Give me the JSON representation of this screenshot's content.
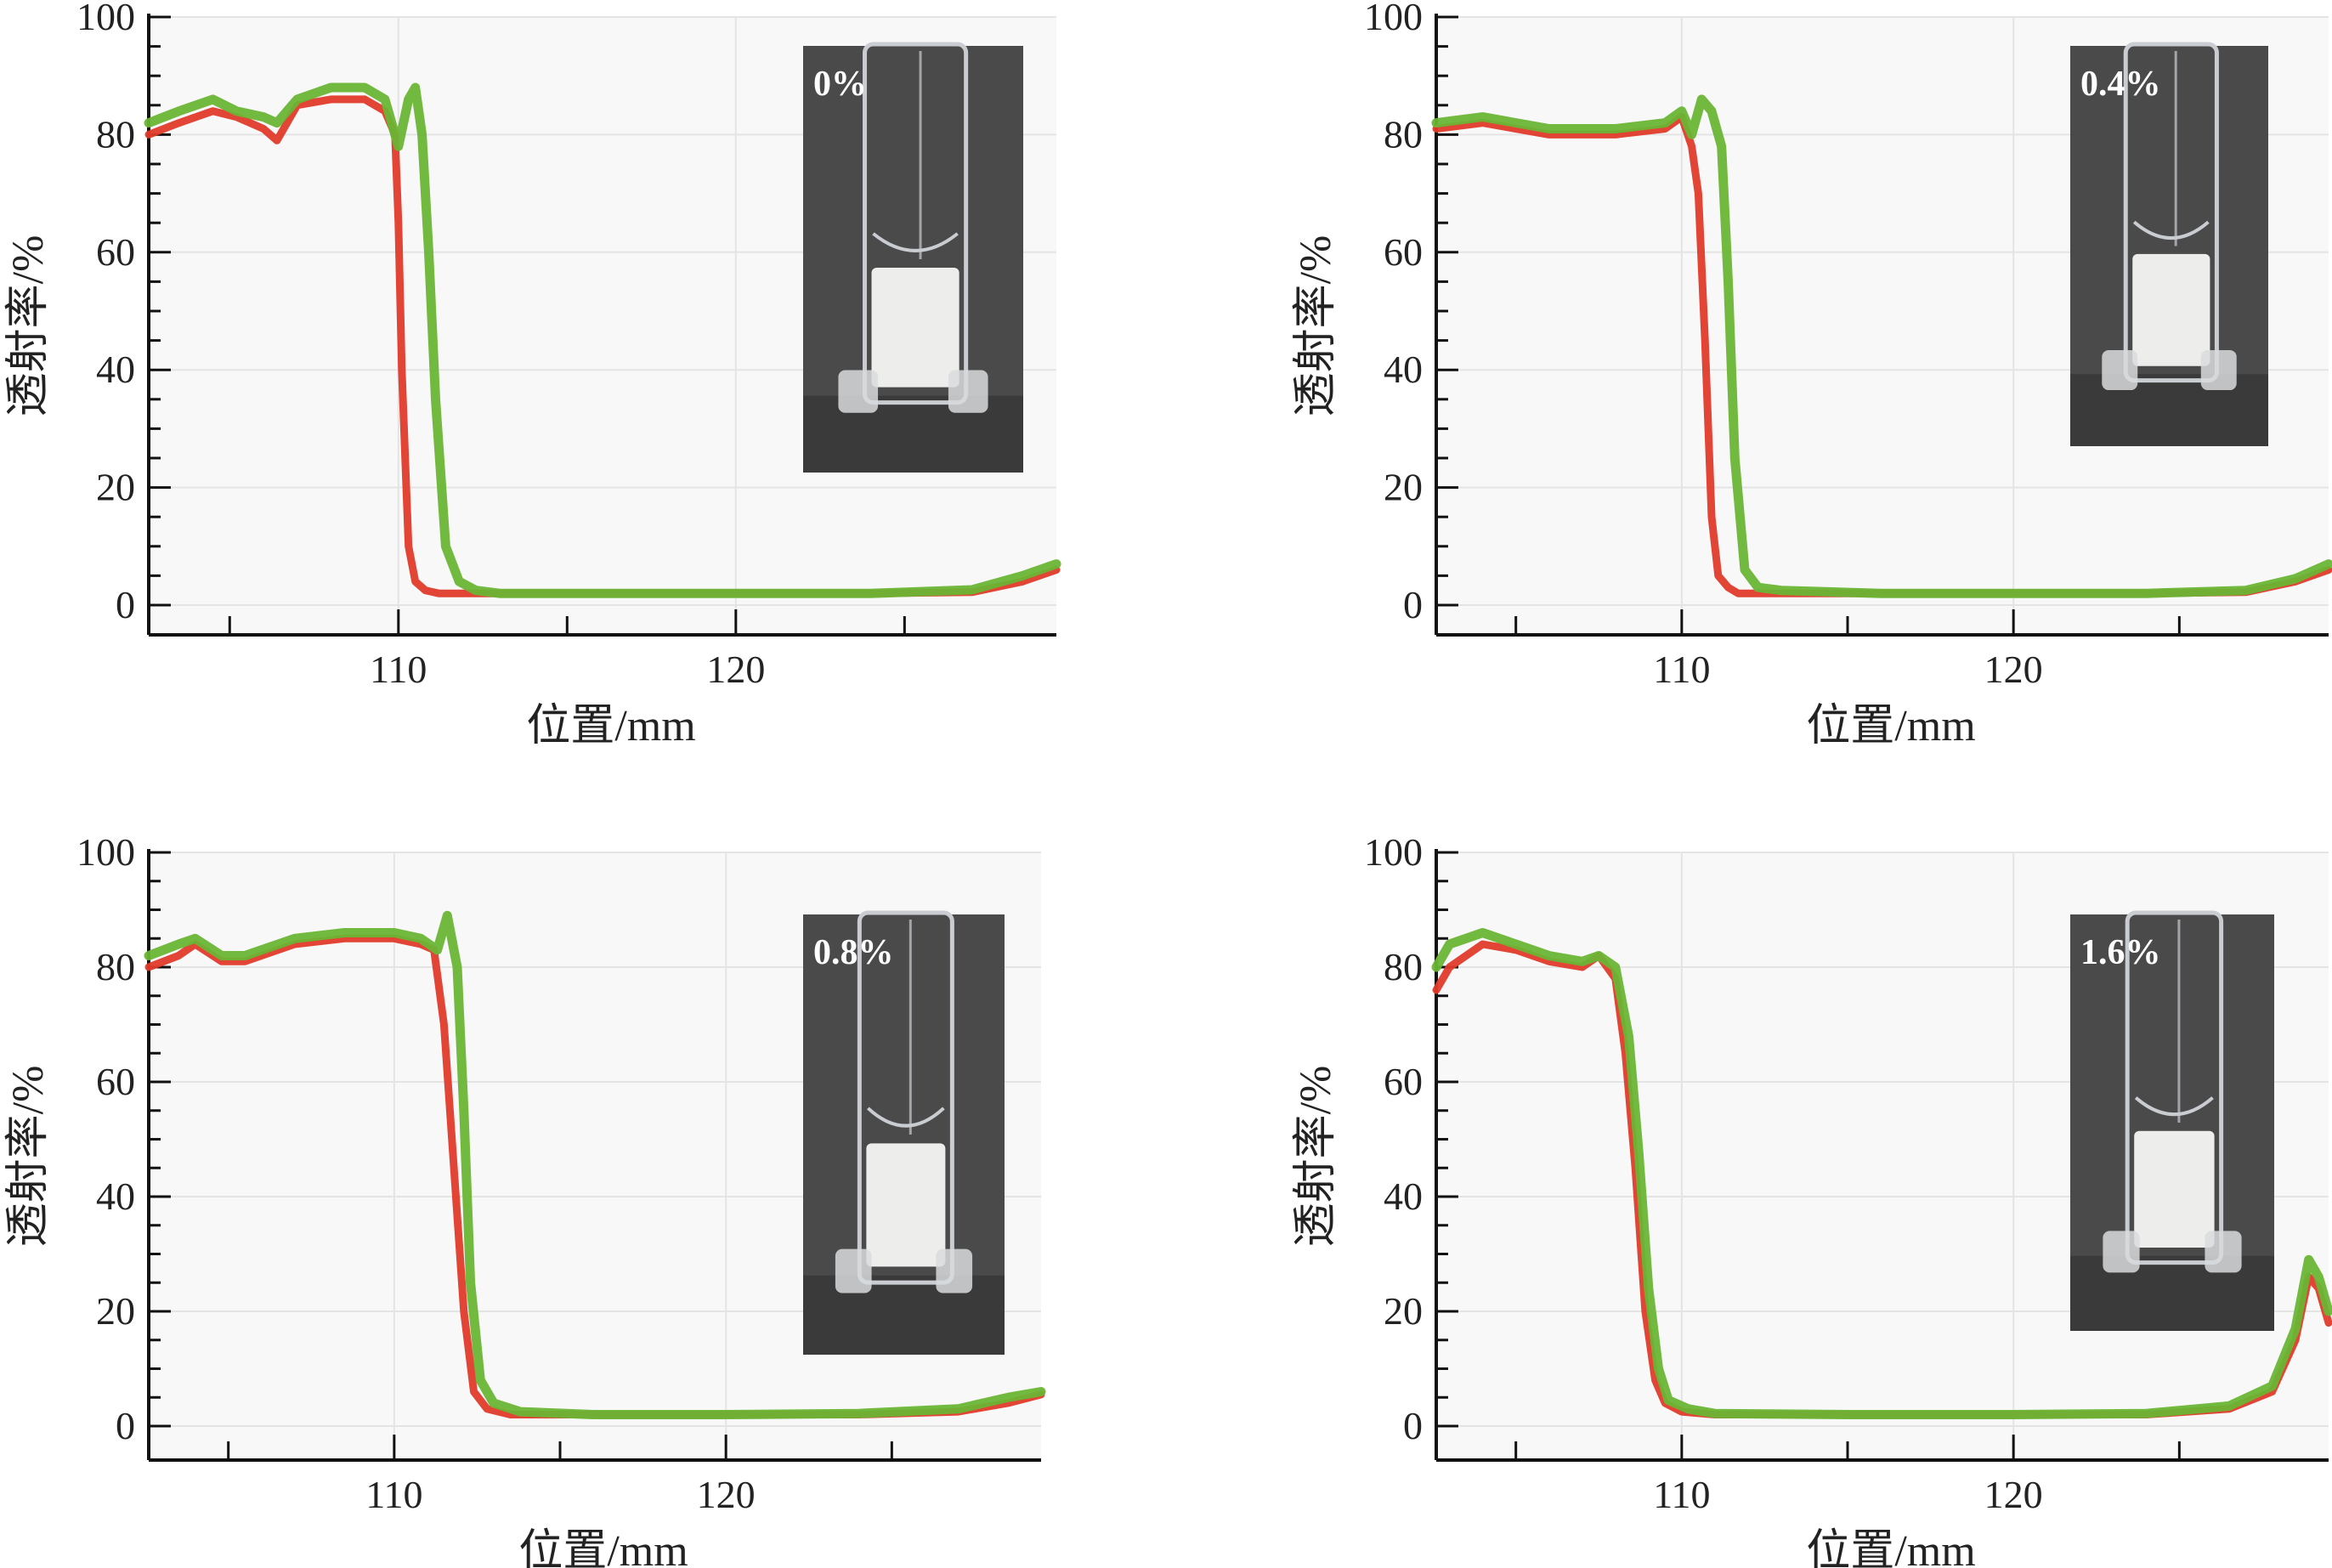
{
  "figure": {
    "panels": [
      {
        "label": "0%"
      },
      {
        "label": "0.4%"
      },
      {
        "label": "0.8%"
      },
      {
        "label": "1.6%"
      }
    ]
  },
  "colors": {
    "series_early": "#e03a2a",
    "series_late": "#6ab535",
    "plot_bg": "#f8f8f8",
    "grid": "#e4e4e4",
    "axis": "#111111",
    "photo_bg": "#4a4a4a",
    "photo_dark": "#3a3a3a",
    "tube_glass": "#c9ccd0",
    "sample_fill": "#ededeb"
  },
  "chart_data": [
    {
      "type": "line",
      "title": "0%",
      "xlabel": "位置/mm",
      "ylabel": "透射率/%",
      "xlim": [
        102.6,
        129.5
      ],
      "ylim": [
        -5,
        100
      ],
      "xticks": [
        110,
        120
      ],
      "yticks": [
        0,
        20,
        40,
        60,
        80,
        100
      ],
      "grid": true,
      "series": [
        {
          "name": "red scan",
          "color": "#e03a2a",
          "x": [
            102.6,
            103.5,
            104.5,
            105.2,
            106.0,
            106.4,
            107.0,
            108.0,
            109.0,
            109.6,
            109.9,
            110.0,
            110.1,
            110.3,
            110.5,
            110.8,
            111.2,
            111.6,
            112.0,
            113.0,
            116.0,
            120.0,
            124.0,
            127.0,
            128.5,
            129.5
          ],
          "y": [
            80,
            82,
            84,
            83,
            81,
            79,
            85,
            86,
            86,
            84,
            80,
            65,
            40,
            10,
            4,
            2.5,
            2,
            2,
            2,
            2,
            2,
            2,
            2,
            2.2,
            4,
            6
          ]
        },
        {
          "name": "green scan",
          "color": "#6ab535",
          "x": [
            102.6,
            103.5,
            104.5,
            105.2,
            106.0,
            106.4,
            107.0,
            108.0,
            109.0,
            109.6,
            110.0,
            110.3,
            110.5,
            110.7,
            110.9,
            111.1,
            111.4,
            111.8,
            112.3,
            113.0,
            116.0,
            120.0,
            124.0,
            127.0,
            128.5,
            129.5
          ],
          "y": [
            82,
            84,
            86,
            84,
            83,
            82,
            86,
            88,
            88,
            86,
            78,
            86,
            88,
            80,
            60,
            35,
            10,
            4,
            2.5,
            2,
            2,
            2,
            2,
            2.6,
            5,
            7
          ]
        }
      ],
      "annotations": [
        "0%"
      ]
    },
    {
      "type": "line",
      "title": "0.4%",
      "xlabel": "位置/mm",
      "ylabel": "透射率/%",
      "xlim": [
        102.6,
        129.5
      ],
      "ylim": [
        -5,
        100
      ],
      "xticks": [
        110,
        120
      ],
      "yticks": [
        0,
        20,
        40,
        60,
        80,
        100
      ],
      "grid": true,
      "series": [
        {
          "name": "red scan",
          "color": "#e03a2a",
          "x": [
            102.6,
            104.0,
            106.0,
            108.0,
            109.5,
            110.0,
            110.3,
            110.5,
            110.7,
            110.9,
            111.1,
            111.4,
            111.7,
            112.0,
            114.0,
            118.0,
            121.0,
            124.0,
            127.0,
            128.5,
            129.5
          ],
          "y": [
            81,
            82,
            80,
            80,
            81,
            83,
            78,
            70,
            45,
            15,
            5,
            3,
            2,
            2,
            2,
            2,
            2,
            2,
            2.2,
            4,
            6
          ]
        },
        {
          "name": "green scan",
          "color": "#6ab535",
          "x": [
            102.6,
            104.0,
            106.0,
            108.0,
            109.5,
            110.0,
            110.3,
            110.6,
            110.9,
            111.2,
            111.4,
            111.6,
            111.9,
            112.3,
            113.0,
            116.0,
            120.0,
            124.0,
            127.0,
            128.5,
            129.5
          ],
          "y": [
            82,
            83,
            81,
            81,
            82,
            84,
            80,
            86,
            84,
            78,
            55,
            25,
            6,
            3,
            2.5,
            2,
            2,
            2,
            2.5,
            4.5,
            7
          ]
        }
      ],
      "annotations": [
        "0.4%"
      ]
    },
    {
      "type": "line",
      "title": "0.8%",
      "xlabel": "位置/mm",
      "ylabel": "透射率/%",
      "xlim": [
        102.6,
        129.5
      ],
      "ylim": [
        -5,
        100
      ],
      "xticks": [
        110,
        120
      ],
      "yticks": [
        0,
        20,
        40,
        60,
        80,
        100
      ],
      "grid": true,
      "series": [
        {
          "name": "red scan",
          "color": "#e03a2a",
          "x": [
            102.6,
            103.5,
            104.0,
            104.8,
            105.5,
            107.0,
            108.5,
            110.0,
            110.8,
            111.2,
            111.5,
            111.8,
            112.1,
            112.4,
            112.8,
            113.5,
            116.0,
            120.0,
            124.0,
            127.0,
            128.5,
            129.5
          ],
          "y": [
            80,
            82,
            84,
            81,
            81,
            84,
            85,
            85,
            84,
            83,
            70,
            45,
            20,
            6,
            3,
            2,
            2,
            2,
            2,
            2.5,
            4,
            5.5
          ]
        },
        {
          "name": "green scan",
          "color": "#6ab535",
          "x": [
            102.6,
            103.5,
            104.0,
            104.8,
            105.5,
            107.0,
            108.5,
            110.0,
            110.8,
            111.3,
            111.6,
            111.9,
            112.1,
            112.3,
            112.6,
            113.0,
            113.8,
            116.0,
            120.0,
            124.0,
            127.0,
            128.5,
            129.5
          ],
          "y": [
            82,
            84,
            85,
            82,
            82,
            85,
            86,
            86,
            85,
            83,
            89,
            80,
            55,
            25,
            8,
            4,
            2.5,
            2,
            2,
            2.2,
            3,
            5,
            6
          ]
        }
      ],
      "annotations": [
        "0.8%"
      ]
    },
    {
      "type": "line",
      "title": "1.6%",
      "xlabel": "位置/mm",
      "ylabel": "透射率/%",
      "xlim": [
        102.6,
        129.5
      ],
      "ylim": [
        -5,
        100
      ],
      "xticks": [
        110,
        120
      ],
      "yticks": [
        0,
        20,
        40,
        60,
        80,
        100
      ],
      "grid": true,
      "series": [
        {
          "name": "red scan",
          "color": "#e03a2a",
          "x": [
            102.6,
            103.0,
            104.0,
            105.0,
            106.0,
            107.0,
            107.5,
            108.0,
            108.3,
            108.6,
            108.9,
            109.2,
            109.5,
            110.0,
            111.0,
            115.0,
            120.0,
            124.0,
            126.5,
            127.8,
            128.5,
            128.9,
            129.2,
            129.5
          ],
          "y": [
            76,
            80,
            84,
            83,
            81,
            80,
            82,
            78,
            65,
            45,
            20,
            8,
            4,
            2.5,
            2,
            2,
            2,
            2,
            3,
            6,
            15,
            26,
            24,
            18
          ]
        },
        {
          "name": "green scan",
          "color": "#6ab535",
          "x": [
            102.6,
            103.0,
            104.0,
            105.0,
            106.0,
            107.0,
            107.5,
            108.0,
            108.4,
            108.7,
            109.0,
            109.3,
            109.6,
            110.2,
            111.0,
            115.0,
            120.0,
            124.0,
            126.5,
            127.8,
            128.5,
            128.9,
            129.2,
            129.5
          ],
          "y": [
            80,
            84,
            86,
            84,
            82,
            81,
            82,
            80,
            68,
            48,
            24,
            10,
            4.5,
            3,
            2.2,
            2,
            2,
            2.2,
            3.5,
            7,
            17,
            29,
            26,
            20
          ]
        }
      ],
      "annotations": [
        "1.6%"
      ]
    }
  ]
}
